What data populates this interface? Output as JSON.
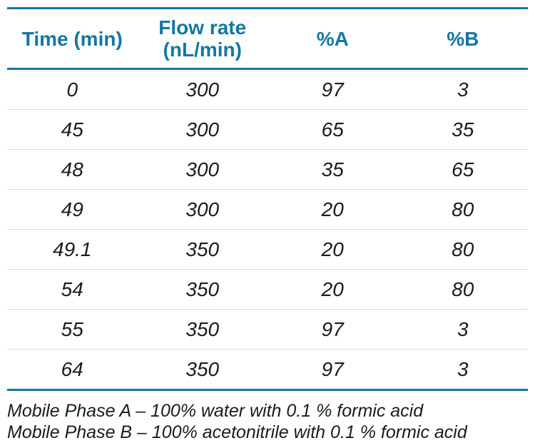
{
  "theme": {
    "accent_color": "#1377a2",
    "text_color": "#1b1b1b",
    "divider_color": "#d8d8d8",
    "background_color": "#ffffff"
  },
  "table": {
    "headers": [
      "Time (min)",
      "Flow rate (nL/min)",
      "%A",
      "%B"
    ],
    "rows": [
      [
        "0",
        "300",
        "97",
        "3"
      ],
      [
        "45",
        "300",
        "65",
        "35"
      ],
      [
        "48",
        "300",
        "35",
        "65"
      ],
      [
        "49",
        "300",
        "20",
        "80"
      ],
      [
        "49.1",
        "350",
        "20",
        "80"
      ],
      [
        "54",
        "350",
        "20",
        "80"
      ],
      [
        "55",
        "350",
        "97",
        "3"
      ],
      [
        "64",
        "350",
        "97",
        "3"
      ]
    ]
  },
  "footnotes": [
    "Mobile Phase A – 100% water with 0.1 % formic acid",
    "Mobile Phase B – 100% acetonitrile with 0.1 % formic acid"
  ]
}
